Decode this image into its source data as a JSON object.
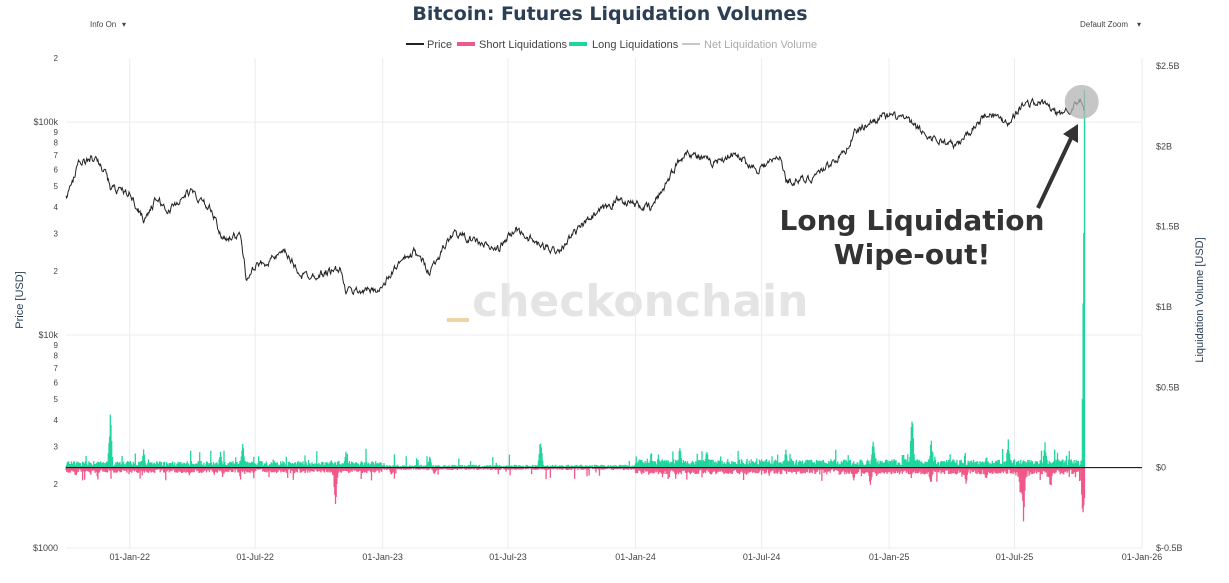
{
  "controls": {
    "info": "Info On",
    "zoom": "Default Zoom",
    "caret": "▾"
  },
  "watermark": "checkonchain",
  "colors": {
    "price": "#222222",
    "short": "#f0588a",
    "long": "#1fd59e",
    "net": "#c8c8c8",
    "zero_line": "#000000",
    "highlight": "#b3b3b3"
  },
  "chart_data": {
    "type": "line",
    "title": "Bitcoin: Futures Liquidation Volumes",
    "legend": [
      "Price",
      "Short Liquidations",
      "Long Liquidations",
      "Net Liquidation Volume"
    ],
    "legend_position": "top-center",
    "xlabel": "",
    "x_ticks": [
      "01-Jan-22",
      "01-Jul-22",
      "01-Jan-23",
      "01-Jul-23",
      "01-Jan-24",
      "01-Jul-24",
      "01-Jan-25",
      "01-Jul-25",
      "01-Jan-26"
    ],
    "x_range": [
      "2021-10-01",
      "2026-01-01"
    ],
    "y_left": {
      "label": "Price [USD]",
      "scale": "log",
      "range": [
        1000,
        200000
      ],
      "major_ticks": [
        {
          "value": 1000,
          "label": "$1000"
        },
        {
          "value": 10000,
          "label": "$10k"
        },
        {
          "value": 100000,
          "label": "$100k"
        }
      ],
      "minor_ticks": [
        2,
        3,
        4,
        5,
        6,
        7,
        8,
        9
      ]
    },
    "y_right": {
      "label": "Liquidation Volume [USD]",
      "range": [
        -0.5,
        2.55
      ],
      "ticks": [
        {
          "value": -0.5,
          "label": "$-0.5B"
        },
        {
          "value": 0,
          "label": "$0"
        },
        {
          "value": 0.5,
          "label": "$0.5B"
        },
        {
          "value": 1,
          "label": "$1B"
        },
        {
          "value": 1.5,
          "label": "$1.5B"
        },
        {
          "value": 2,
          "label": "$2B"
        },
        {
          "value": 2.5,
          "label": "$2.5B"
        }
      ]
    },
    "price_series": [
      [
        "2021-10-01",
        43800
      ],
      [
        "2021-10-20",
        64000
      ],
      [
        "2021-11-10",
        67500
      ],
      [
        "2021-11-28",
        57500
      ],
      [
        "2021-12-04",
        49000
      ],
      [
        "2021-12-31",
        46300
      ],
      [
        "2022-01-22",
        35000
      ],
      [
        "2022-02-10",
        44000
      ],
      [
        "2022-02-24",
        38000
      ],
      [
        "2022-03-29",
        47500
      ],
      [
        "2022-04-30",
        38000
      ],
      [
        "2022-05-12",
        29000
      ],
      [
        "2022-06-10",
        29000
      ],
      [
        "2022-06-18",
        19000
      ],
      [
        "2022-07-08",
        21500
      ],
      [
        "2022-08-14",
        24300
      ],
      [
        "2022-09-06",
        19000
      ],
      [
        "2022-10-01",
        19300
      ],
      [
        "2022-10-31",
        20500
      ],
      [
        "2022-11-09",
        16000
      ],
      [
        "2022-12-31",
        16500
      ],
      [
        "2023-01-20",
        21000
      ],
      [
        "2023-02-16",
        24500
      ],
      [
        "2023-03-10",
        20000
      ],
      [
        "2023-04-13",
        30300
      ],
      [
        "2023-06-15",
        25000
      ],
      [
        "2023-07-13",
        31500
      ],
      [
        "2023-08-17",
        26000
      ],
      [
        "2023-09-11",
        25000
      ],
      [
        "2023-10-24",
        34500
      ],
      [
        "2023-12-08",
        43500
      ],
      [
        "2024-01-23",
        39000
      ],
      [
        "2024-02-28",
        62000
      ],
      [
        "2024-03-14",
        73000
      ],
      [
        "2024-04-20",
        64000
      ],
      [
        "2024-05-20",
        71000
      ],
      [
        "2024-06-24",
        60000
      ],
      [
        "2024-07-29",
        69000
      ],
      [
        "2024-08-05",
        53000
      ],
      [
        "2024-09-06",
        53500
      ],
      [
        "2024-10-29",
        72000
      ],
      [
        "2024-11-12",
        89000
      ],
      [
        "2024-12-17",
        106000
      ],
      [
        "2025-01-20",
        106000
      ],
      [
        "2025-02-25",
        86000
      ],
      [
        "2025-04-08",
        77000
      ],
      [
        "2025-05-22",
        111000
      ],
      [
        "2025-06-22",
        100000
      ],
      [
        "2025-07-14",
        122000
      ],
      [
        "2025-08-14",
        123000
      ],
      [
        "2025-09-01",
        108000
      ],
      [
        "2025-10-06",
        124500
      ],
      [
        "2025-10-10",
        112000
      ]
    ],
    "long_liquidation_peaks": [
      [
        "2021-12-04",
        0.36
      ],
      [
        "2022-01-21",
        0.12
      ],
      [
        "2022-05-12",
        0.1
      ],
      [
        "2022-06-13",
        0.18
      ],
      [
        "2022-11-09",
        0.11
      ],
      [
        "2023-03-10",
        0.08
      ],
      [
        "2023-08-17",
        0.2
      ],
      [
        "2024-03-05",
        0.14
      ],
      [
        "2024-04-13",
        0.12
      ],
      [
        "2024-08-05",
        0.12
      ],
      [
        "2024-12-09",
        0.21
      ],
      [
        "2025-02-03",
        0.37
      ],
      [
        "2025-03-03",
        0.19
      ],
      [
        "2025-06-22",
        0.19
      ],
      [
        "2025-08-14",
        0.17
      ],
      [
        "2025-10-10",
        2.35
      ]
    ],
    "short_liquidation_peaks": [
      [
        "2021-10-15",
        -0.06
      ],
      [
        "2022-03-28",
        -0.05
      ],
      [
        "2022-10-25",
        -0.25
      ],
      [
        "2023-01-14",
        -0.06
      ],
      [
        "2023-03-17",
        -0.05
      ],
      [
        "2024-02-28",
        -0.07
      ],
      [
        "2024-11-11",
        -0.09
      ],
      [
        "2024-12-05",
        -0.12
      ],
      [
        "2025-03-02",
        -0.12
      ],
      [
        "2025-04-22",
        -0.12
      ],
      [
        "2025-05-21",
        -0.09
      ],
      [
        "2025-07-10",
        -0.21
      ],
      [
        "2025-07-14",
        -0.34
      ],
      [
        "2025-08-22",
        -0.15
      ],
      [
        "2025-10-08",
        -0.38
      ]
    ],
    "annotations": [
      {
        "text_lines": [
          "Long Liquidation",
          "Wipe-out!"
        ],
        "target": [
          "2025-10-06",
          124500
        ]
      }
    ]
  }
}
